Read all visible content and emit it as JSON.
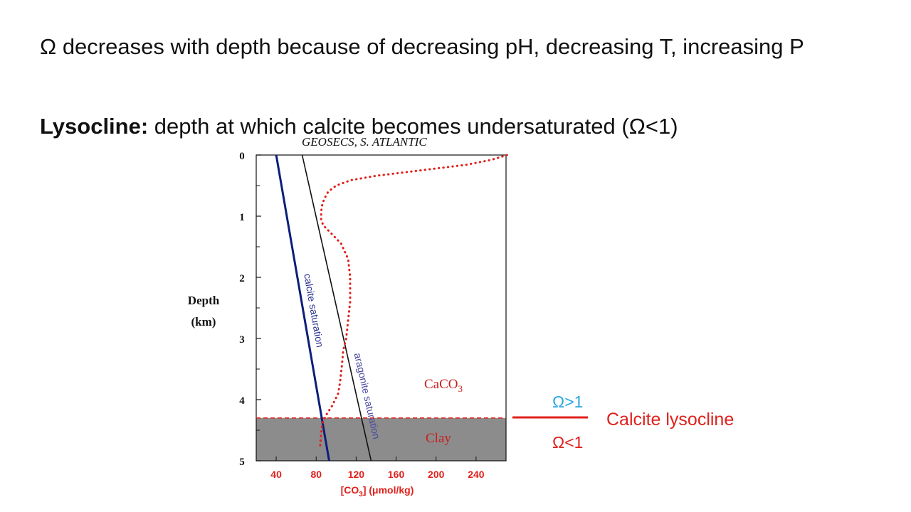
{
  "slide": {
    "line1_omega": "Ω",
    "line1_text": "decreases with depth because of decreasing pH, decreasing T, increasing P",
    "line2_label": "Lysocline:",
    "line2_text": "depth at which calcite becomes undersaturated (",
    "line2_omega": "Ω",
    "line2_end": "<1)"
  },
  "annotation": {
    "omega_gt": "Ω>1",
    "omega_lt": "Ω<1",
    "lysocline_label": "Calcite lysocline"
  },
  "colors": {
    "carbonate_profile": "#e0201c",
    "calcite_saturation": "#0b1f7a",
    "aragonite_saturation": "#111111",
    "clay_fill": "#8c8c8c",
    "omega_gt": "#29a8e0",
    "omega_lt": "#e0201c",
    "lysocline_line": "#e0201c"
  },
  "chart_data": {
    "type": "line",
    "title": "GEOSECS, S. ATLANTIC",
    "ylabel_line1": "Depth",
    "ylabel_line2": "(km)",
    "xlabel": "[CO3] (μmol/kg)",
    "xlabel_parts": {
      "before": "[CO",
      "sub": "3",
      "after": "] (μmol/kg)"
    },
    "xlim": [
      20,
      270
    ],
    "ylim": [
      0,
      5
    ],
    "y_inverted": true,
    "xticks": [
      40,
      80,
      120,
      160,
      200,
      240
    ],
    "yticks": [
      0,
      1,
      2,
      3,
      4,
      5
    ],
    "series": [
      {
        "name": "calcite saturation",
        "style": "solid",
        "x": [
          40,
          93
        ],
        "y": [
          0,
          5
        ]
      },
      {
        "name": "aragonite saturation",
        "style": "solid",
        "x": [
          66,
          135
        ],
        "y": [
          0,
          5
        ]
      },
      {
        "name": "",
        "style": "dotted",
        "x": [
          271,
          255,
          230,
          200,
          170,
          140,
          115,
          100,
          92,
          88,
          86,
          85,
          85,
          87,
          95,
          105,
          112,
          114,
          114,
          112,
          110,
          107,
          106,
          104,
          102,
          96,
          90,
          86,
          85,
          84
        ],
        "y": [
          0,
          0.08,
          0.16,
          0.22,
          0.28,
          0.34,
          0.41,
          0.5,
          0.6,
          0.72,
          0.82,
          0.92,
          1.05,
          1.15,
          1.28,
          1.45,
          1.7,
          2.0,
          2.4,
          2.7,
          3.0,
          3.2,
          3.4,
          3.7,
          3.9,
          4.1,
          4.25,
          4.4,
          4.55,
          4.75
        ]
      }
    ],
    "regions": {
      "caco3_label": "CaCO",
      "caco3_sub": "3",
      "clay_label": "Clay",
      "boundary_depth": 4.3
    },
    "line_labels": {
      "calcite": "calcite saturation",
      "aragonite": "aragonite saturation"
    }
  }
}
